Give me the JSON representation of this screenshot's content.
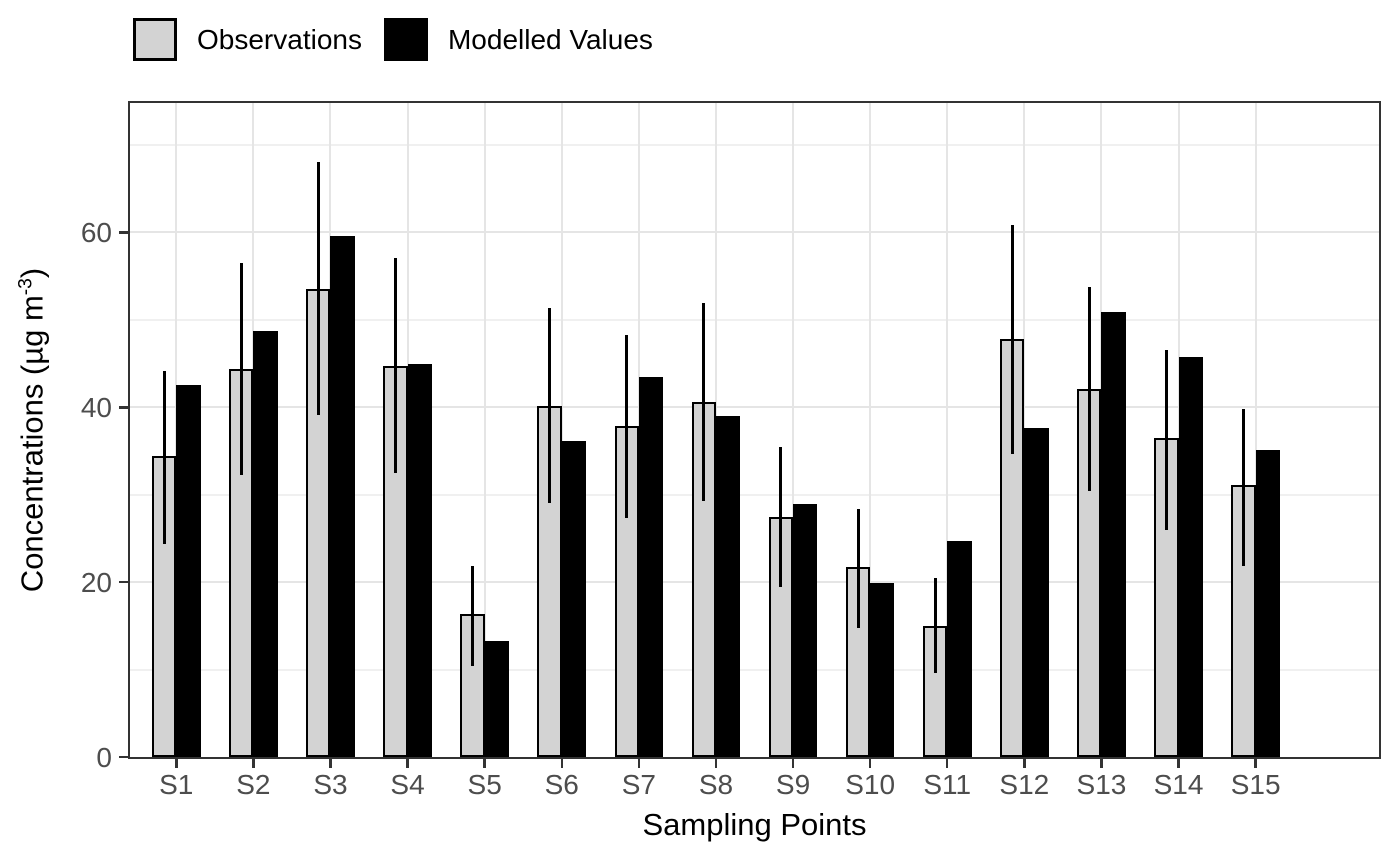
{
  "chart_data": {
    "type": "bar",
    "title": "",
    "xlabel": "Sampling Points",
    "ylabel": "Concentrations (µg m⁻³)",
    "ylabel_parts": {
      "prefix": "Concentrations (µg m",
      "superscript": "-3",
      "suffix": ")"
    },
    "categories": [
      "S1",
      "S2",
      "S3",
      "S4",
      "S5",
      "S6",
      "S7",
      "S8",
      "S9",
      "S10",
      "S11",
      "S12",
      "S13",
      "S14",
      "S15"
    ],
    "series": [
      {
        "name": "Observations",
        "color": "#d3d3d3",
        "values": [
          34.4,
          44.4,
          53.5,
          44.7,
          16.3,
          40.2,
          37.9,
          40.6,
          27.4,
          21.7,
          15.0,
          47.8,
          42.1,
          36.5,
          31.1
        ]
      },
      {
        "name": "Modelled Values",
        "color": "#000000",
        "values": [
          42.6,
          48.7,
          59.6,
          44.9,
          13.3,
          36.2,
          43.5,
          39.0,
          28.9,
          19.9,
          24.7,
          37.6,
          50.9,
          45.7,
          35.1
        ]
      }
    ],
    "error_bars": {
      "series": "Observations",
      "low": [
        24.4,
        32.2,
        39.1,
        32.5,
        10.4,
        29.0,
        27.3,
        29.3,
        19.5,
        14.7,
        9.6,
        34.7,
        30.4,
        26.0,
        21.9
      ],
      "high": [
        44.1,
        56.5,
        68.0,
        57.1,
        21.9,
        51.3,
        48.3,
        51.9,
        35.4,
        28.4,
        20.5,
        60.8,
        53.7,
        46.6,
        39.8
      ]
    },
    "ylim": [
      0,
      74.8
    ],
    "yticks": [
      0,
      20,
      40,
      60
    ],
    "minor_yticks": [
      10,
      30,
      50,
      70
    ],
    "grid": {
      "horizontal": "major+minor",
      "vertical": "at category centers"
    },
    "legend_position": "top-left"
  },
  "legend": {
    "items": [
      {
        "label": "Observations",
        "fill": "#d3d3d3",
        "border": "#000000"
      },
      {
        "label": "Modelled Values",
        "fill": "#000000",
        "border": "#000000"
      }
    ]
  },
  "colors": {
    "background": "#ffffff",
    "panel_border": "#333333",
    "grid_major": "#e5e5e5",
    "grid_minor": "#f0f0f0",
    "tick": "#333333",
    "tick_label": "#4d4d4d",
    "errorbar": "#000000"
  }
}
